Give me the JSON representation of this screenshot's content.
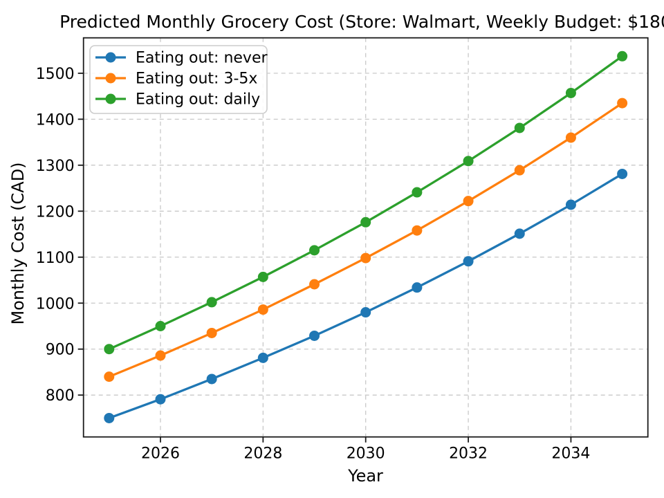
{
  "figure": {
    "background": "#ffffff",
    "text_color": "#000000",
    "grid_color": "#c8c8c8",
    "spine_color": "#1a1a1a",
    "legend_border_color": "#cccccc"
  },
  "chart_data": {
    "type": "line",
    "title": "Predicted Monthly Grocery Cost (Store: Walmart, Weekly Budget: $180",
    "xlabel": "Year",
    "ylabel": "Monthly Cost (CAD)",
    "x": [
      2025,
      2026,
      2027,
      2028,
      2029,
      2030,
      2031,
      2032,
      2033,
      2034,
      2035
    ],
    "series": [
      {
        "name": "Eating out: never",
        "color": "#1f77b4",
        "values": [
          750,
          791,
          835,
          881,
          929,
          980,
          1034,
          1091,
          1151,
          1214,
          1281
        ]
      },
      {
        "name": "Eating out: 3-5x",
        "color": "#ff7f0e",
        "values": [
          840,
          886,
          935,
          986,
          1041,
          1098,
          1158,
          1222,
          1289,
          1360,
          1435
        ]
      },
      {
        "name": "Eating out: daily",
        "color": "#2ca02c",
        "values": [
          900,
          950,
          1002,
          1057,
          1115,
          1176,
          1241,
          1309,
          1381,
          1457,
          1537
        ]
      }
    ],
    "xlim": [
      2024.5,
      2035.5
    ],
    "ylim": [
      709,
      1577
    ],
    "xticks": [
      2026,
      2028,
      2030,
      2032,
      2034
    ],
    "yticks": [
      800,
      900,
      1000,
      1100,
      1200,
      1300,
      1400,
      1500
    ],
    "grid": true,
    "grid_style": "dashed",
    "legend_position": "upper left",
    "marker": "circle",
    "line_width": 3.3,
    "marker_radius": 7.5
  }
}
